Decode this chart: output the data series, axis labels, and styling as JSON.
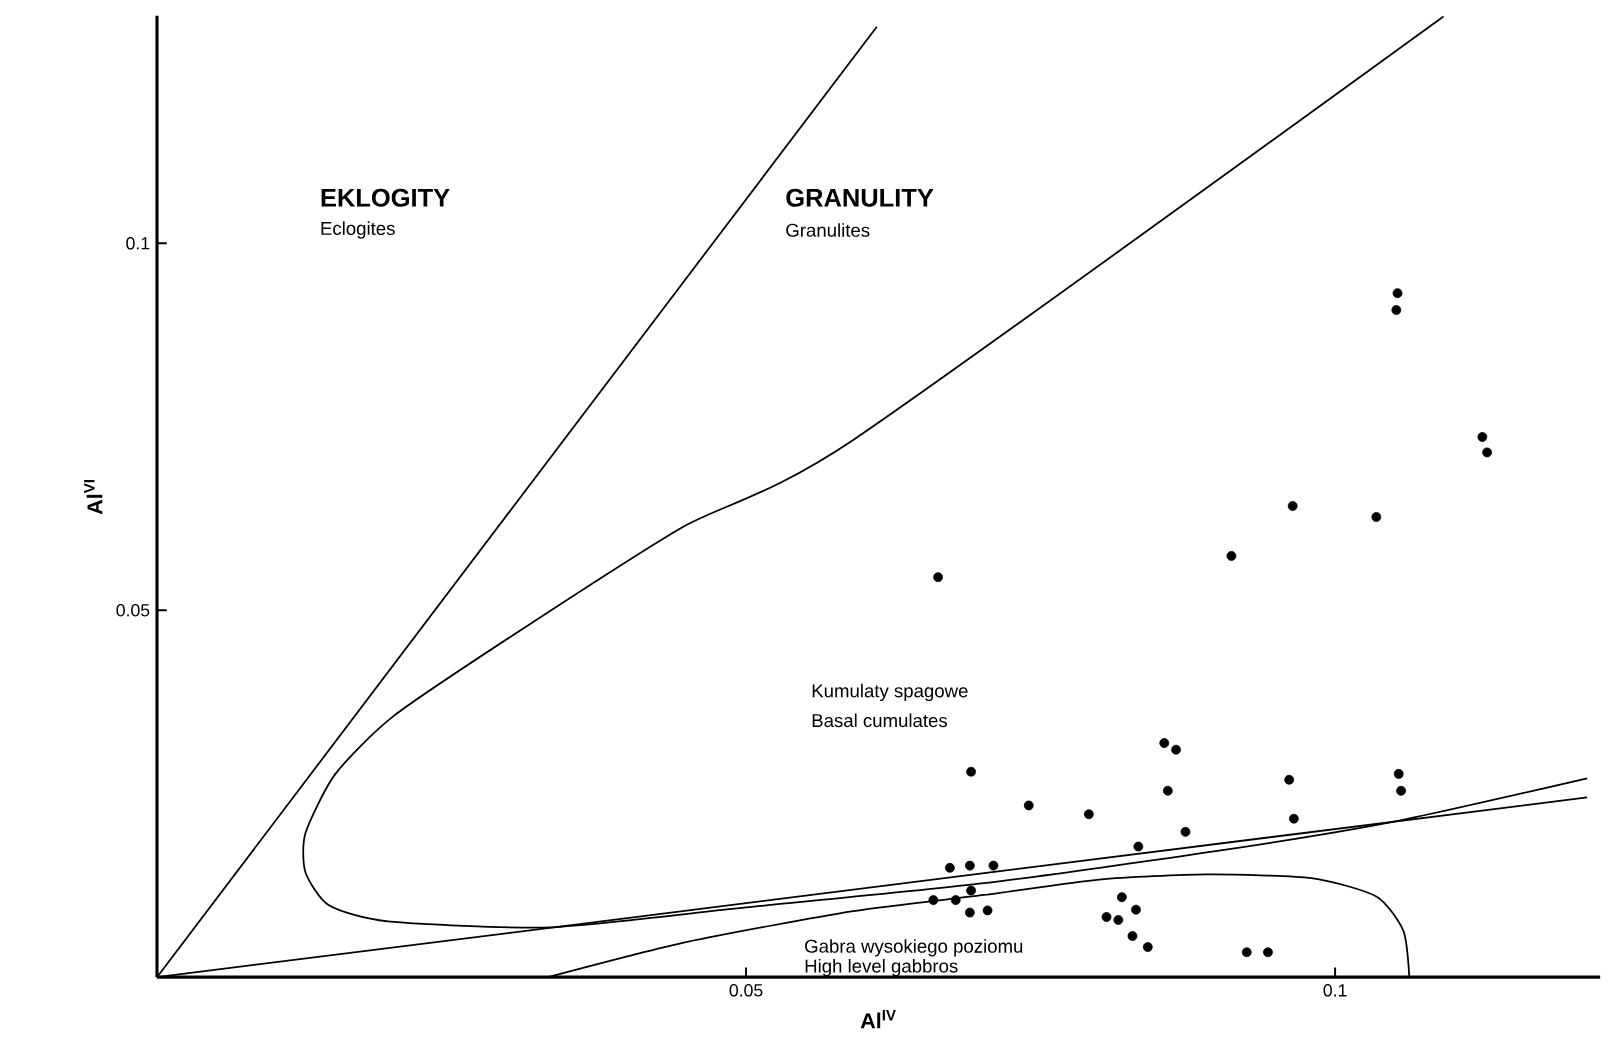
{
  "chart_data": {
    "type": "scatter",
    "xlabel": "Al$^{IV}$",
    "ylabel": "Al$^{VI}$",
    "xlim": [
      0,
      0.1225
    ],
    "ylim": [
      0,
      0.131
    ],
    "xticks": [
      0.05,
      0.1
    ],
    "yticks": [
      0.05,
      0.1
    ],
    "annotations": [
      "EKLOGITY",
      "Eclogites",
      "GRANULITY",
      "Granulites",
      "Kumulaty spagowe",
      "Basal cumulates",
      "Gabra wysokiego poziomu",
      "High level gabbros"
    ],
    "series": [
      {
        "color": "#000000",
        "marker": "circle",
        "x": [
          0.1053,
          0.1052,
          0.1125,
          0.1129,
          0.0964,
          0.1035,
          0.0912,
          0.0663,
          0.0691,
          0.0855,
          0.0865,
          0.0961,
          0.1054,
          0.1056,
          0.074,
          0.0791,
          0.0858,
          0.0965,
          0.0873,
          0.0833,
          0.0673,
          0.069,
          0.071,
          0.0659,
          0.0678,
          0.0691,
          0.069,
          0.0705,
          0.0819,
          0.0806,
          0.0816,
          0.0831,
          0.0828,
          0.0841,
          0.0925,
          0.0943
        ],
        "values": [
          0.0932,
          0.0909,
          0.0736,
          0.0715,
          0.0642,
          0.0627,
          0.0574,
          0.0545,
          0.028,
          0.0319,
          0.031,
          0.0269,
          0.0277,
          0.0254,
          0.0234,
          0.0222,
          0.0254,
          0.0216,
          0.0198,
          0.0178,
          0.0149,
          0.0152,
          0.0152,
          0.0105,
          0.0105,
          0.0118,
          0.0088,
          0.0091,
          0.0109,
          0.0082,
          0.0078,
          0.0092,
          0.0056,
          0.0041,
          0.0034,
          0.0034
        ]
      },
      {
        "type": "line",
        "color": "#000000",
        "marker": "none",
        "x": [
          0,
          0.0611
        ],
        "values": [
          0,
          0.1295
        ]
      },
      {
        "type": "line",
        "color": "#000000",
        "marker": "none",
        "x": [
          0,
          0.1214
        ],
        "values": [
          0,
          0.0245
        ]
      },
      {
        "type": "line",
        "color": "#000000",
        "marker": "none",
        "x": [
          0.1092,
          0.0591,
          0.0446,
          0.0307,
          0.0201,
          0.0151,
          0.0126,
          0.0126,
          0.0146,
          0.0196,
          0.0335,
          0.05,
          0.0702,
          0.09,
          0.105,
          0.1214
        ],
        "values": [
          0.1309,
          0.0732,
          0.0613,
          0.0471,
          0.0356,
          0.0276,
          0.0196,
          0.0143,
          0.0098,
          0.0076,
          0.0068,
          0.0095,
          0.0128,
          0.0172,
          0.0212,
          0.0271
        ]
      },
      {
        "type": "line",
        "color": "#000000",
        "marker": "none",
        "x": [
          0.0332,
          0.045,
          0.0591,
          0.0702,
          0.08,
          0.0891,
          0.098,
          0.1035,
          0.1058,
          0.1063
        ],
        "values": [
          0,
          0.0048,
          0.009,
          0.0112,
          0.0133,
          0.014,
          0.0135,
          0.011,
          0.0063,
          0
        ]
      }
    ]
  }
}
